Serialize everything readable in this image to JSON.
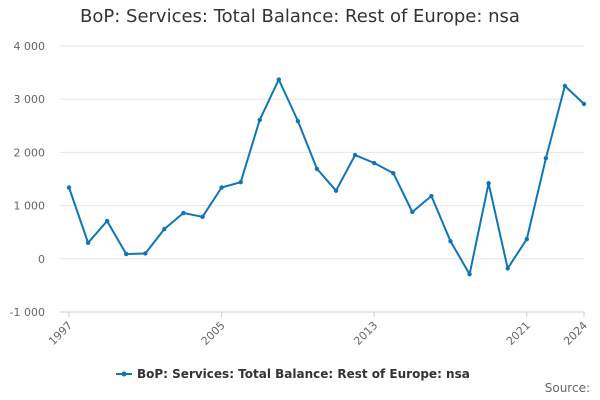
{
  "chart_data": {
    "type": "line",
    "title": "BoP: Services: Total Balance: Rest of Europe: nsa",
    "xlabel": "",
    "ylabel": "",
    "x": [
      1997,
      1998,
      1999,
      2000,
      2001,
      2002,
      2003,
      2004,
      2005,
      2006,
      2007,
      2008,
      2009,
      2010,
      2011,
      2012,
      2013,
      2014,
      2015,
      2016,
      2017,
      2018,
      2019,
      2020,
      2021,
      2022,
      2023,
      2024
    ],
    "xlim": [
      1997,
      2024
    ],
    "x_tick_labels": [
      "1997",
      "2005",
      "2013",
      "2021",
      "2024"
    ],
    "x_tick_values": [
      1997,
      2005,
      2013,
      2021,
      2024
    ],
    "ylim": [
      -1000,
      4000
    ],
    "y_tick_values": [
      -1000,
      0,
      1000,
      2000,
      3000,
      4000
    ],
    "y_tick_labels": [
      "-1 000",
      "0",
      "1 000",
      "2 000",
      "3 000",
      "4 000"
    ],
    "grid": "horizontal",
    "legend_position": "bottom",
    "series": [
      {
        "name": "BoP: Services: Total Balance: Rest of Europe: nsa",
        "color": "#0e76b6",
        "values": [
          1340,
          300,
          710,
          90,
          100,
          560,
          860,
          790,
          1340,
          1440,
          2610,
          3370,
          2590,
          1690,
          1280,
          1950,
          1800,
          1610,
          880,
          1180,
          330,
          -290,
          1420,
          -180,
          370,
          1890,
          3250,
          2910
        ]
      }
    ]
  },
  "source_label": "Source:"
}
